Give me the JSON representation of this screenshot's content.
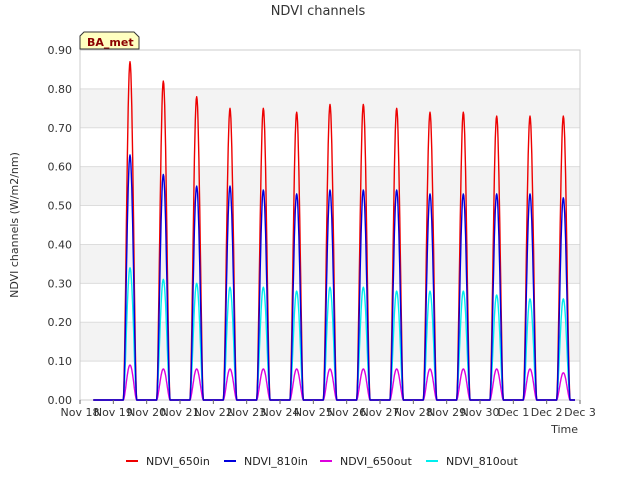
{
  "chart_data": {
    "type": "line",
    "title": "NDVI channels",
    "xlabel": "Time",
    "ylabel": "NDVI channels (W/m2/nm)",
    "badge": "BA_met",
    "ylim": [
      0,
      0.9
    ],
    "yticks": [
      "0.00",
      "0.10",
      "0.20",
      "0.30",
      "0.40",
      "0.50",
      "0.60",
      "0.70",
      "0.80",
      "0.90"
    ],
    "xlim": [
      "Nov 18",
      "Dec 3"
    ],
    "xticks": [
      "Nov 18",
      "Nov 19",
      "Nov 20",
      "Nov 21",
      "Nov 22",
      "Nov 23",
      "Nov 24",
      "Nov 25",
      "Nov 26",
      "Nov 27",
      "Nov 28",
      "Nov 29",
      "Nov 30",
      "Dec 1",
      "Dec 2",
      "Dec 3"
    ],
    "grid": true,
    "legend_position": "bottom",
    "days": [
      "Nov 19",
      "Nov 20",
      "Nov 21",
      "Nov 22",
      "Nov 23",
      "Nov 24",
      "Nov 25",
      "Nov 26",
      "Nov 27",
      "Nov 28",
      "Nov 29",
      "Nov 30",
      "Dec 1",
      "Dec 2"
    ],
    "series": [
      {
        "name": "NDVI_650in",
        "color": "#ee0000",
        "daily_peak": [
          0.87,
          0.82,
          0.78,
          0.75,
          0.75,
          0.74,
          0.76,
          0.76,
          0.75,
          0.74,
          0.74,
          0.73,
          0.73,
          0.73
        ]
      },
      {
        "name": "NDVI_810in",
        "color": "#0000dd",
        "daily_peak": [
          0.63,
          0.58,
          0.55,
          0.55,
          0.54,
          0.53,
          0.54,
          0.54,
          0.54,
          0.53,
          0.53,
          0.53,
          0.53,
          0.52
        ]
      },
      {
        "name": "NDVI_650out",
        "color": "#dd00dd",
        "daily_peak": [
          0.09,
          0.08,
          0.08,
          0.08,
          0.08,
          0.08,
          0.08,
          0.08,
          0.08,
          0.08,
          0.08,
          0.08,
          0.08,
          0.07
        ]
      },
      {
        "name": "NDVI_810out",
        "color": "#00eeee",
        "daily_peak": [
          0.34,
          0.31,
          0.3,
          0.29,
          0.29,
          0.28,
          0.29,
          0.29,
          0.28,
          0.28,
          0.28,
          0.27,
          0.26,
          0.26
        ]
      }
    ]
  }
}
